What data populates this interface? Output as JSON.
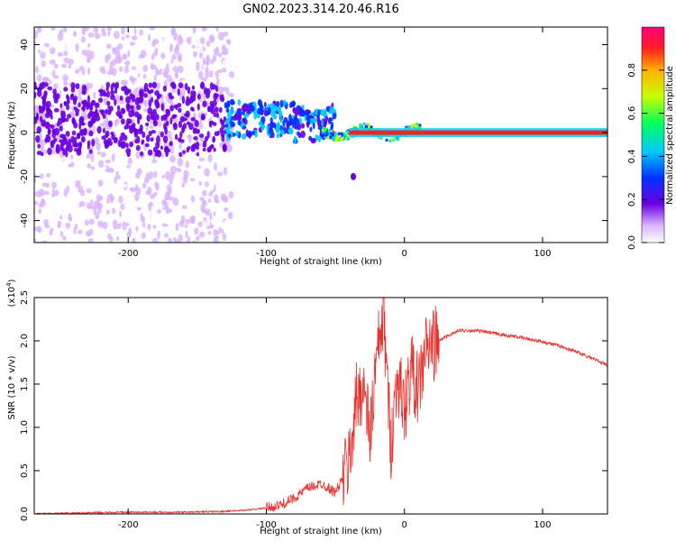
{
  "title": "GN02.2023.314.20.46.R16",
  "chart_data": [
    {
      "type": "heatmap",
      "xlabel": "Height of straight line (km)",
      "ylabel": "Frequency (Hz)",
      "xlim": [
        -268,
        147
      ],
      "ylim": [
        -50,
        48
      ],
      "xticks": [
        -200,
        -100,
        0,
        100
      ],
      "yticks": [
        -40,
        -20,
        0,
        20,
        40
      ],
      "colorbar": {
        "label": "Normalized spectral amplitude",
        "range": [
          0,
          1
        ],
        "ticks": [
          "0.0",
          "0.2",
          "0.4",
          "0.6",
          "0.8"
        ]
      },
      "features": [
        {
          "description_x_range": [
            -268,
            -130
          ],
          "frequency_spread": [
            -50,
            48
          ],
          "amplitude": 0.1
        },
        {
          "description_x_range": [
            -130,
            -55
          ],
          "frequency_center": 2,
          "amplitude": 0.3
        },
        {
          "description_x_range": [
            -40,
            10
          ],
          "frequency_center": 0,
          "amplitude": 0.5
        },
        {
          "description_x_range": [
            -40,
            147
          ],
          "frequency_center": 0,
          "amplitude": 0.9
        }
      ]
    },
    {
      "type": "line",
      "xlabel": "Height of straight line (km)",
      "ylabel": "SNR (10 * v/v)",
      "yscale_label": "(x10",
      "yscale_exp": "4",
      "xlim": [
        -268,
        147
      ],
      "ylim": [
        0,
        2.5
      ],
      "xticks": [
        -200,
        -100,
        0,
        100
      ],
      "yticks": [
        "0.0",
        "0.5",
        "1.0",
        "1.5",
        "2.0",
        "2.5"
      ],
      "series": [
        {
          "color": "#e8302c",
          "x": [
            -268,
            -240,
            -200,
            -160,
            -130,
            -110,
            -100,
            -90,
            -80,
            -70,
            -60,
            -50,
            -45,
            -40,
            -35,
            -30,
            -25,
            -20,
            -15,
            -10,
            -5,
            0,
            5,
            10,
            15,
            20,
            25,
            30,
            40,
            50,
            60,
            70,
            80,
            90,
            100,
            110,
            120,
            130,
            140,
            147
          ],
          "y": [
            0.0,
            0.01,
            0.02,
            0.02,
            0.03,
            0.05,
            0.07,
            0.1,
            0.18,
            0.3,
            0.35,
            0.25,
            0.4,
            0.6,
            1.3,
            1.5,
            0.9,
            1.8,
            2.3,
            0.8,
            1.6,
            1.2,
            1.7,
            1.4,
            1.9,
            1.95,
            2.0,
            2.05,
            2.12,
            2.12,
            2.1,
            2.07,
            2.05,
            2.02,
            1.99,
            1.95,
            1.9,
            1.84,
            1.77,
            1.72
          ]
        }
      ]
    }
  ]
}
